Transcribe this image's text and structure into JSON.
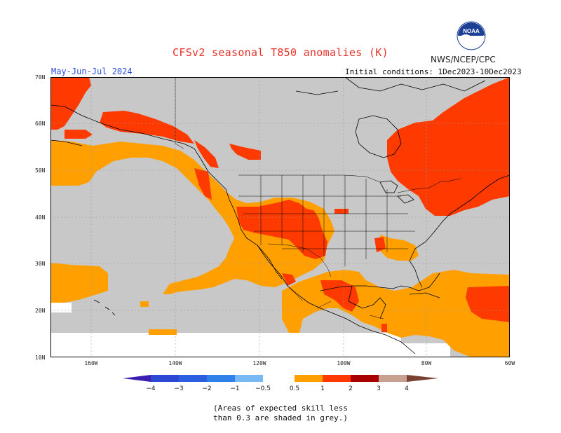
{
  "header": {
    "title": "CFSv2 seasonal T850 anomalies (K)",
    "org": "NWS/NCEP/CPC",
    "season": "May-Jun-Jul 2024",
    "initial_conditions": "Initial conditions: 1Dec2023-10Dec2023",
    "logo_text": "NOAA"
  },
  "axes": {
    "lat_labels": [
      "70N",
      "60N",
      "50N",
      "40N",
      "30N",
      "20N",
      "10N"
    ],
    "lon_labels": [
      "160W",
      "140W",
      "120W",
      "100W",
      "80W",
      "60W"
    ]
  },
  "colorbar": {
    "labels": [
      "−4",
      "−3",
      "−2",
      "−1",
      "−0.5",
      "0.5",
      "1",
      "2",
      "3",
      "4"
    ],
    "colors": [
      "#3a1fb0",
      "#2c48d4",
      "#2f6fe0",
      "#3d97ee",
      "#78c1f7",
      "#ffffff",
      "#ffa000",
      "#ff3a00",
      "#a80000",
      "#c8a090",
      "#7a4030"
    ]
  },
  "legend_colors": {
    "grey_low_skill": "#c8c8c8",
    "orange_0_5_to_1": "#ffa000",
    "red_1_to_2": "#ff3a00",
    "white_neutral": "#ffffff"
  },
  "note": {
    "line1": "(Areas of expected skill less",
    "line2": "than 0.3 are shaded in grey.)"
  }
}
